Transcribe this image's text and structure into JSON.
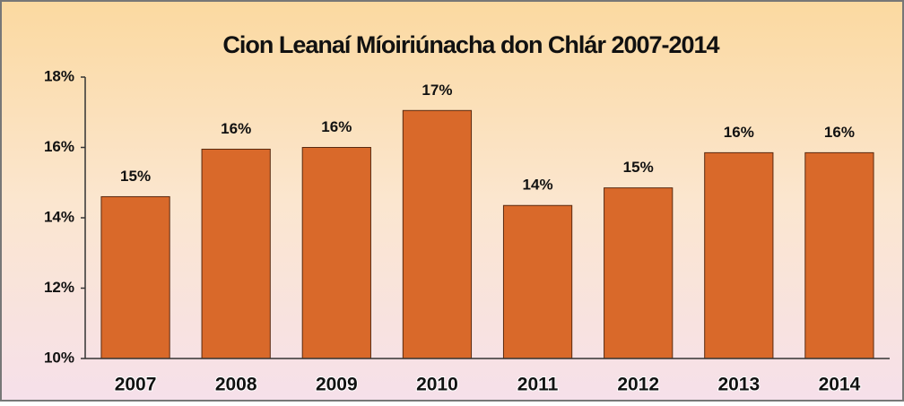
{
  "chart_data": {
    "type": "bar",
    "title": "Cion Leanaí Míoiriúnacha don Chlár 2007-2014",
    "categories": [
      "2007",
      "2008",
      "2009",
      "2010",
      "2011",
      "2012",
      "2013",
      "2014"
    ],
    "values": [
      14.6,
      15.95,
      16.0,
      17.05,
      14.35,
      14.85,
      15.85,
      15.85
    ],
    "value_labels": [
      "15%",
      "16%",
      "16%",
      "17%",
      "14%",
      "15%",
      "16%",
      "16%"
    ],
    "color": "#d9692a",
    "ylim": [
      10,
      18
    ],
    "yticks": [
      {
        "value": 10,
        "label": "10%"
      },
      {
        "value": 12,
        "label": "12%"
      },
      {
        "value": 14,
        "label": "14%"
      },
      {
        "value": 16,
        "label": "16%"
      },
      {
        "value": 18,
        "label": "18%"
      }
    ],
    "grid": false
  }
}
